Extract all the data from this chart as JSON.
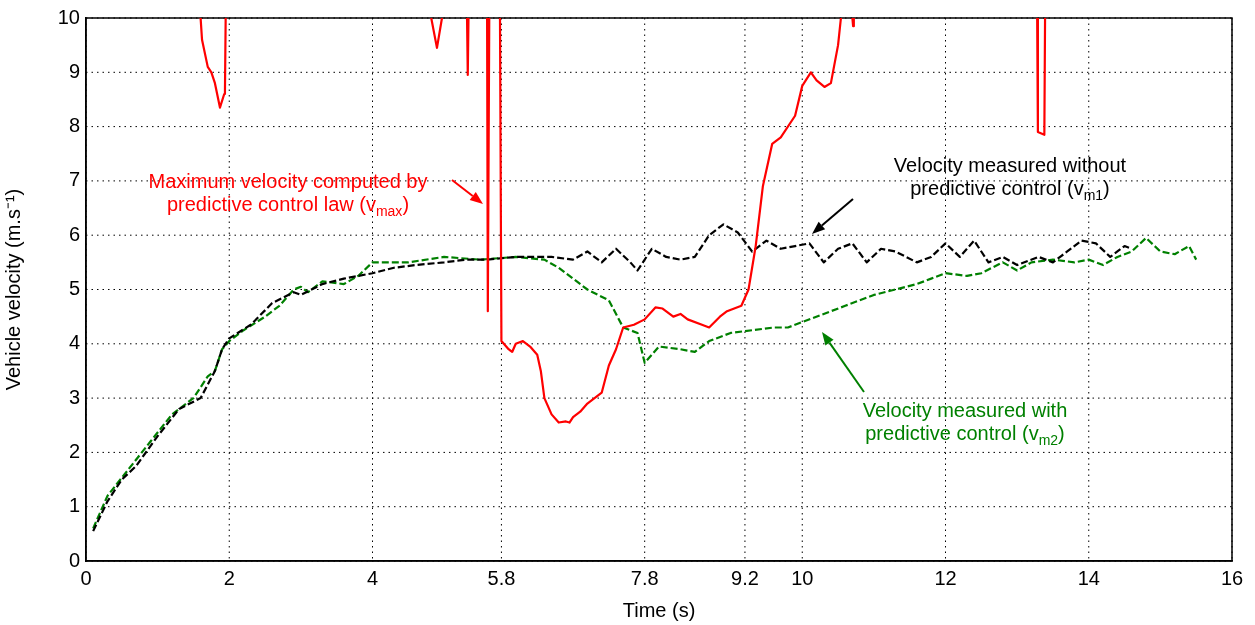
{
  "chart_data": {
    "type": "line",
    "xlabel": "Time (s)",
    "ylabel": "Vehicle velocity (m.s⁻¹)",
    "xlim": [
      0,
      16
    ],
    "xticks": [
      0,
      2,
      4,
      5.8,
      7.8,
      9.2,
      10,
      12,
      14,
      16
    ],
    "ylim": [
      0,
      10
    ],
    "yticks": [
      0,
      1,
      2,
      3,
      4,
      5,
      6,
      7,
      8,
      9,
      10
    ],
    "grid": true,
    "legend": false,
    "marker": "none",
    "series": [
      {
        "color": "#ff0000",
        "line_style": "solid",
        "x": [
          1.6,
          1.62,
          1.7,
          1.75,
          1.8,
          1.87,
          1.93,
          1.94,
          1.95,
          1.96,
          4.82,
          4.9,
          4.97,
          4.98,
          5.32,
          5.33,
          5.34,
          5.35,
          5.6,
          5.61,
          5.63,
          5.64,
          5.78,
          5.8,
          5.9,
          5.95,
          6.0,
          6.1,
          6.2,
          6.3,
          6.35,
          6.4,
          6.5,
          6.6,
          6.7,
          6.75,
          6.8,
          6.9,
          7.0,
          7.1,
          7.2,
          7.3,
          7.4,
          7.5,
          7.65,
          7.8,
          7.95,
          8.05,
          8.2,
          8.3,
          8.4,
          8.6,
          8.7,
          8.85,
          8.95,
          9.15,
          9.25,
          9.35,
          9.45,
          9.58,
          9.7,
          9.9,
          10.0,
          10.12,
          10.2,
          10.31,
          10.4,
          10.5,
          10.54,
          10.6,
          10.7,
          10.71,
          10.72,
          10.73,
          13.28,
          13.29,
          13.38,
          13.39
        ],
        "values": [
          10,
          9.6,
          9.1,
          9.0,
          8.8,
          8.35,
          8.6,
          8.65,
          10,
          null,
          10,
          9.45,
          10,
          null,
          10,
          8.95,
          10,
          null,
          10,
          4.6,
          10,
          null,
          10,
          4.05,
          3.9,
          3.85,
          4.0,
          4.05,
          3.95,
          3.8,
          3.5,
          3.0,
          2.7,
          2.55,
          2.57,
          2.55,
          2.65,
          2.75,
          2.9,
          3.0,
          3.1,
          3.6,
          3.9,
          4.3,
          4.35,
          4.45,
          4.67,
          4.65,
          4.5,
          4.55,
          4.45,
          4.35,
          4.3,
          4.5,
          4.6,
          4.7,
          5.0,
          5.8,
          6.9,
          7.68,
          7.8,
          8.2,
          8.75,
          9.0,
          8.85,
          8.73,
          8.8,
          9.5,
          10,
          null,
          10,
          9.85,
          10,
          null,
          10,
          7.9,
          7.85,
          10
        ]
      },
      {
        "color": "#000000",
        "line_style": "dashed",
        "x": [
          0.1,
          0.3,
          0.5,
          0.7,
          1.0,
          1.3,
          1.6,
          1.8,
          1.9,
          2.0,
          2.3,
          2.6,
          2.9,
          3.0,
          3.3,
          3.6,
          4.0,
          4.3,
          4.6,
          5.0,
          5.3,
          5.6,
          6.0,
          6.5,
          6.8,
          7.0,
          7.2,
          7.4,
          7.6,
          7.7,
          7.9,
          8.1,
          8.3,
          8.5,
          8.7,
          8.9,
          9.1,
          9.3,
          9.5,
          9.7,
          9.9,
          10.1,
          10.3,
          10.5,
          10.7,
          10.9,
          11.1,
          11.3,
          11.6,
          11.8,
          12.0,
          12.2,
          12.4,
          12.6,
          12.8,
          13.0,
          13.3,
          13.5,
          13.7,
          13.9,
          14.1,
          14.3,
          14.5,
          14.6
        ],
        "values": [
          0.55,
          1.1,
          1.5,
          1.75,
          2.3,
          2.8,
          3.0,
          3.5,
          3.9,
          4.1,
          4.35,
          4.75,
          4.95,
          4.9,
          5.1,
          5.2,
          5.3,
          5.4,
          5.45,
          5.5,
          5.55,
          5.55,
          5.6,
          5.6,
          5.55,
          5.7,
          5.5,
          5.75,
          5.5,
          5.35,
          5.75,
          5.6,
          5.55,
          5.6,
          6.0,
          6.2,
          6.05,
          5.7,
          5.9,
          5.75,
          5.8,
          5.85,
          5.5,
          5.75,
          5.85,
          5.5,
          5.75,
          5.7,
          5.5,
          5.6,
          5.85,
          5.6,
          5.9,
          5.5,
          5.6,
          5.45,
          5.6,
          5.5,
          5.7,
          5.9,
          5.85,
          5.6,
          5.8,
          5.75
        ]
      },
      {
        "color": "#008000",
        "line_style": "dashed",
        "x": [
          0.1,
          0.3,
          0.6,
          0.9,
          1.2,
          1.5,
          1.7,
          1.8,
          1.9,
          2.0,
          2.2,
          2.5,
          2.7,
          2.9,
          3.0,
          3.1,
          3.3,
          3.6,
          3.8,
          4.0,
          4.5,
          5.0,
          5.5,
          6.0,
          6.4,
          6.6,
          7.0,
          7.3,
          7.5,
          7.7,
          7.8,
          8.0,
          8.3,
          8.5,
          8.7,
          9.0,
          9.3,
          9.6,
          9.8,
          10.0,
          10.3,
          10.6,
          11.0,
          11.3,
          11.6,
          11.8,
          12.0,
          12.3,
          12.5,
          12.8,
          13.0,
          13.2,
          13.5,
          13.8,
          14.0,
          14.2,
          14.4,
          14.6,
          14.8,
          15.0,
          15.2,
          15.4,
          15.5
        ],
        "values": [
          0.6,
          1.2,
          1.7,
          2.2,
          2.7,
          3.0,
          3.4,
          3.5,
          3.9,
          4.05,
          4.25,
          4.5,
          4.7,
          5.0,
          5.05,
          4.95,
          5.15,
          5.1,
          5.25,
          5.5,
          5.5,
          5.6,
          5.55,
          5.6,
          5.55,
          5.4,
          5.0,
          4.8,
          4.3,
          4.2,
          3.65,
          3.95,
          3.9,
          3.85,
          4.05,
          4.2,
          4.25,
          4.3,
          4.3,
          4.4,
          4.55,
          4.7,
          4.9,
          5.0,
          5.1,
          5.2,
          5.3,
          5.25,
          5.3,
          5.5,
          5.35,
          5.5,
          5.55,
          5.5,
          5.55,
          5.45,
          5.6,
          5.7,
          5.95,
          5.7,
          5.65,
          5.8,
          5.55
        ]
      }
    ],
    "annotations": [
      "Maximum velocity computed by predictive control law (v$_{max}$)",
      "Velocity measured without predictive control (v$_{m1}$)",
      "Velocity measured with predictive control (v$_{m2}$)"
    ]
  }
}
